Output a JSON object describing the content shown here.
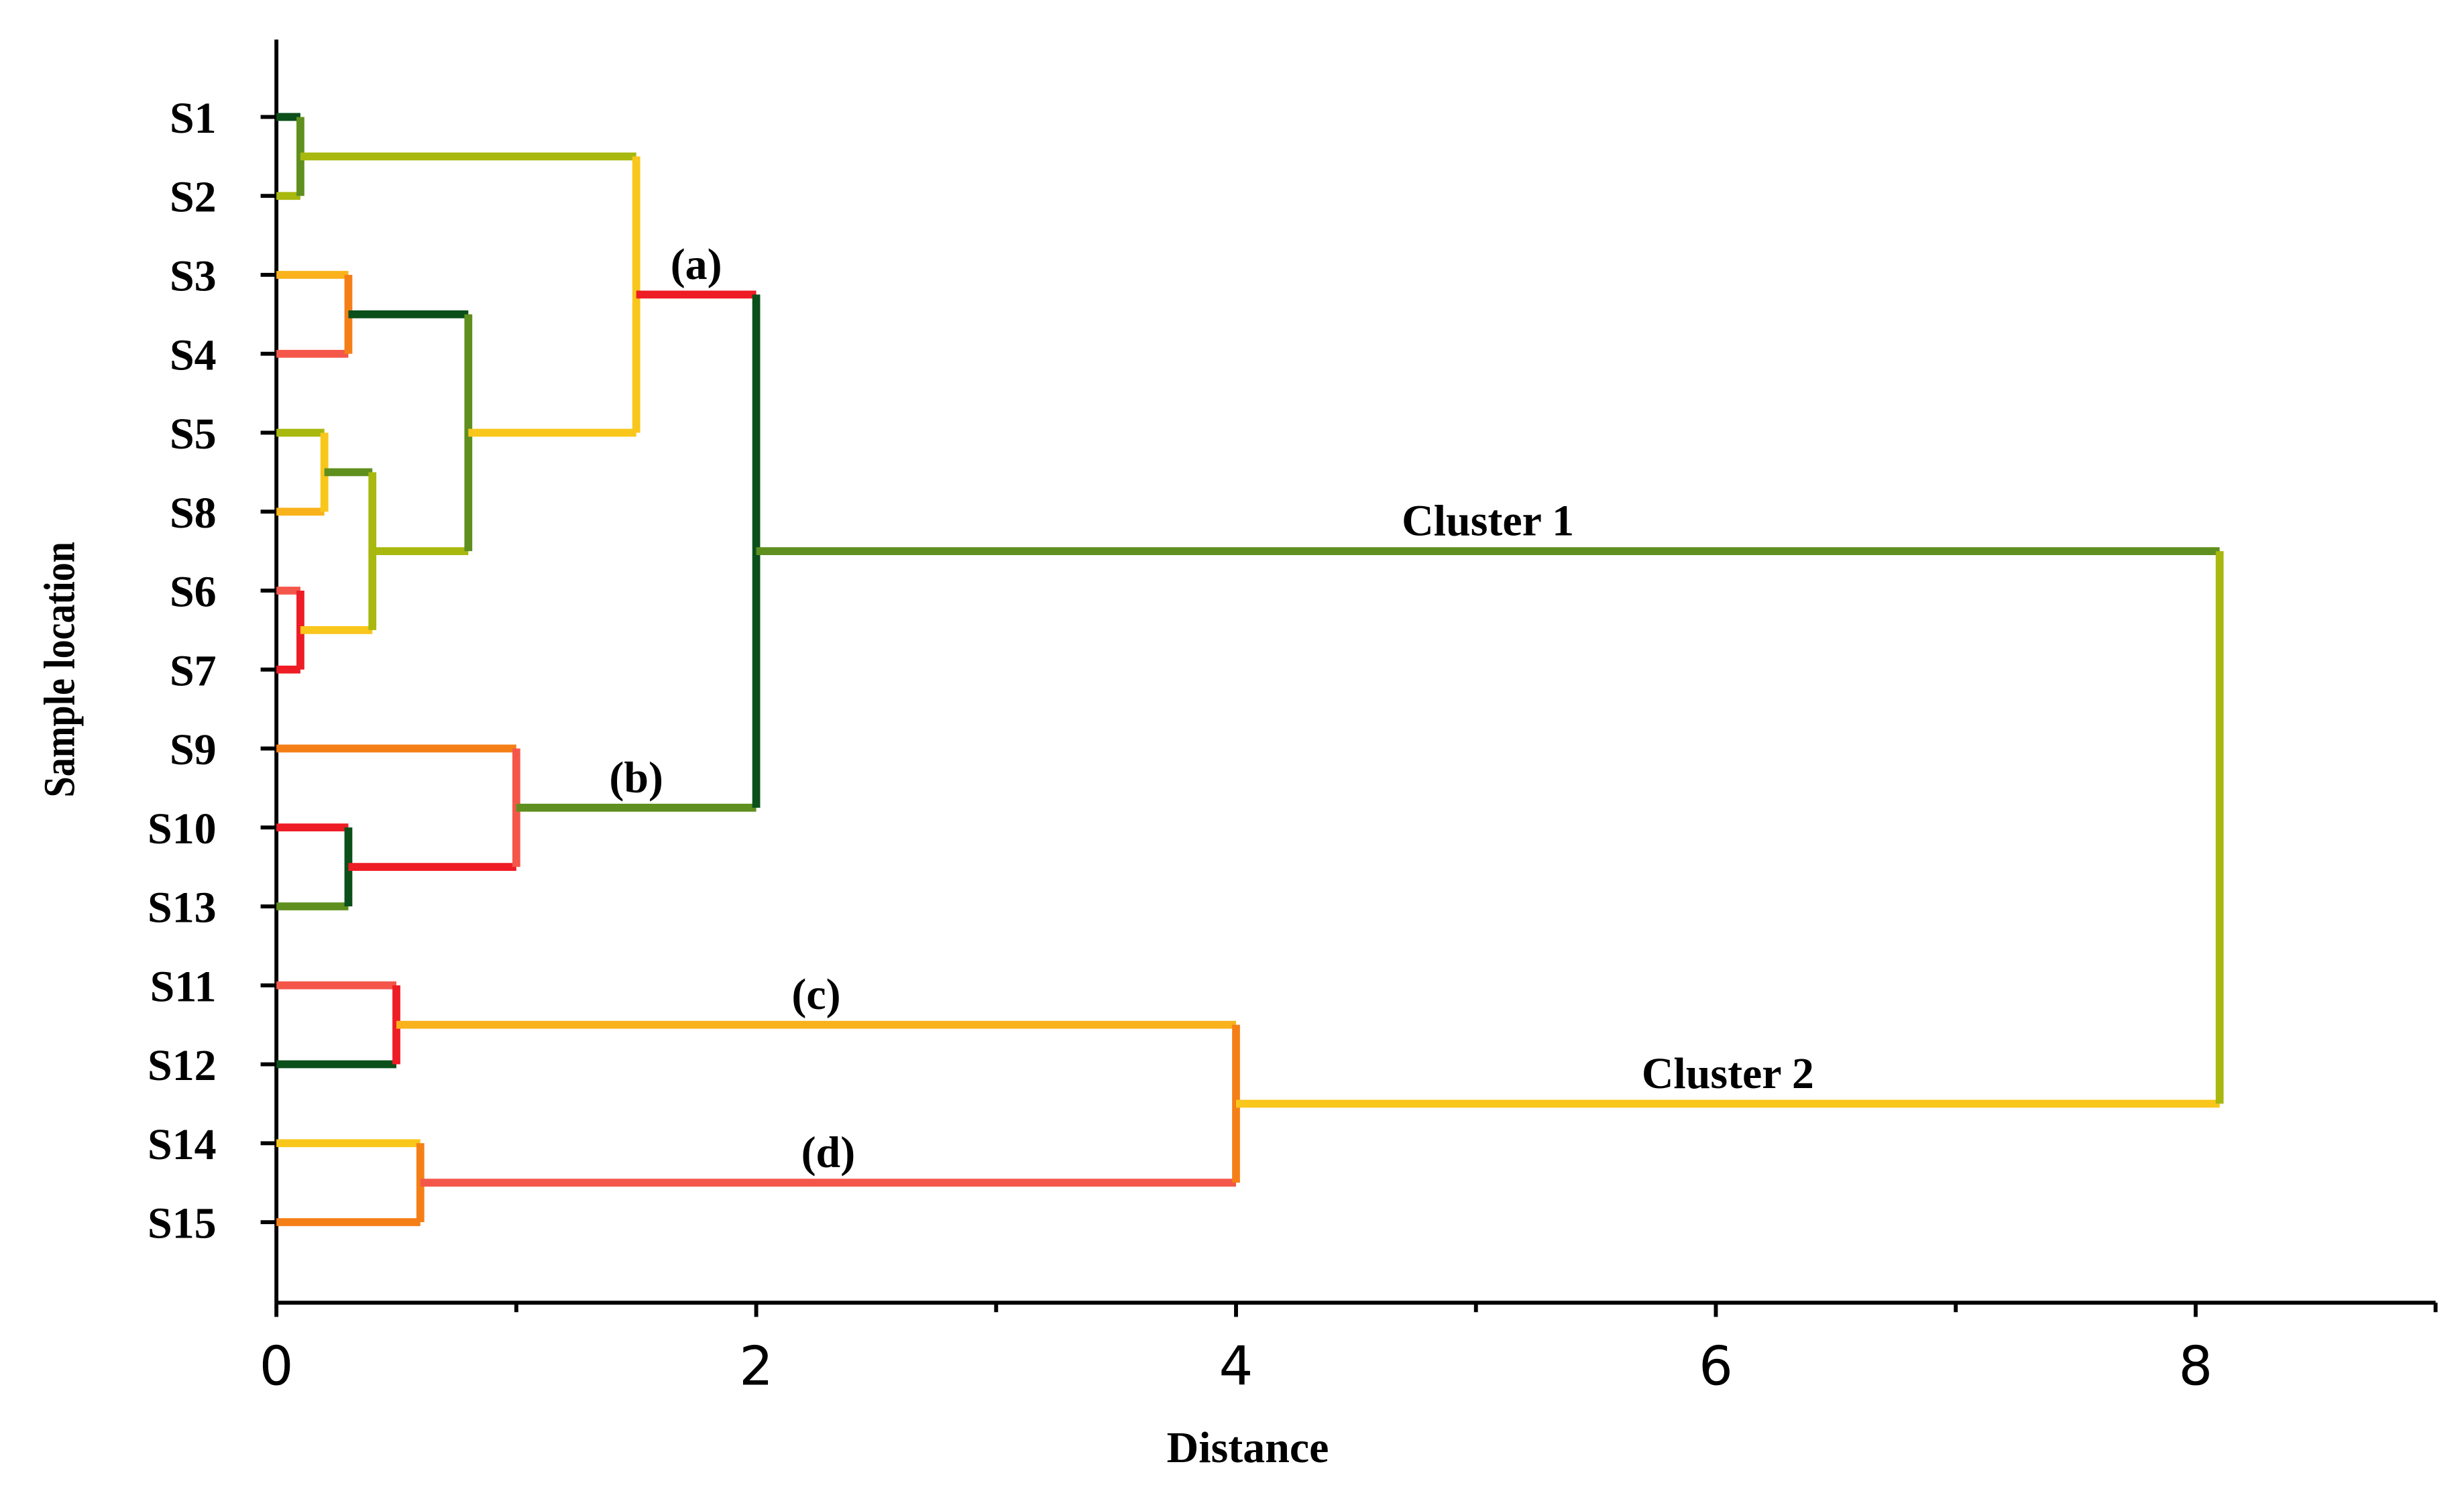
{
  "chart_data": {
    "type": "dendrogram",
    "xlabel": "Distance",
    "ylabel": "Sample location",
    "leaves": [
      "S1",
      "S2",
      "S3",
      "S4",
      "S5",
      "S8",
      "S6",
      "S7",
      "S9",
      "S10",
      "S13",
      "S11",
      "S12",
      "S14",
      "S15"
    ],
    "merges": [
      {
        "left": 0,
        "right": 1,
        "height": 0.1,
        "colors": [
          "#0b4f1a",
          "#5f8f1e",
          "#a8b80f"
        ]
      },
      {
        "left": 2,
        "right": 3,
        "height": 0.3,
        "colors": [
          "#f9b21b",
          "#f57f17",
          "#f4574a"
        ]
      },
      {
        "left": 4,
        "right": 5,
        "height": 0.2,
        "colors": [
          "#a8b80f",
          "#f9c61b",
          "#f9b21b"
        ]
      },
      {
        "left": 6,
        "right": 7,
        "height": 0.1,
        "colors": [
          "#f4574a",
          "#ee1c25",
          "#ee1c25"
        ]
      },
      {
        "left": 17,
        "right": 18,
        "height": 0.4,
        "colors": [
          "#5f8f1e",
          "#a8b80f",
          "#f9c61b"
        ]
      },
      {
        "left": 16,
        "right": 19,
        "height": 0.8,
        "colors": [
          "#0b4f1a",
          "#5f8f1e",
          "#a8b80f"
        ]
      },
      {
        "left": 15,
        "right": 20,
        "height": 1.5,
        "colors": [
          "#a8b80f",
          "#f9c61b",
          "#f9c61b"
        ]
      },
      {
        "left": 9,
        "right": 10,
        "height": 0.3,
        "colors": [
          "#ee1c25",
          "#0b4f1a",
          "#5f8f1e"
        ]
      },
      {
        "left": 8,
        "right": 22,
        "height": 1.0,
        "colors": [
          "#f57f17",
          "#f4574a",
          "#ee1c25"
        ]
      },
      {
        "left": 21,
        "right": 23,
        "height": 2.0,
        "colors": [
          "#ee1c25",
          "#0b4f1a",
          "#5f8f1e"
        ],
        "labels": [
          "(a)",
          "(b)"
        ]
      },
      {
        "left": 11,
        "right": 12,
        "height": 0.5,
        "colors": [
          "#f4574a",
          "#ee1c25",
          "#0b4f1a"
        ]
      },
      {
        "left": 13,
        "right": 14,
        "height": 0.6,
        "colors": [
          "#f9c61b",
          "#f57f17",
          "#f57f17"
        ]
      },
      {
        "left": 25,
        "right": 26,
        "height": 4.0,
        "colors": [
          "#f9b21b",
          "#f57f17",
          "#f4574a"
        ],
        "labels": [
          "(c)",
          "(d)"
        ]
      },
      {
        "left": 24,
        "right": 27,
        "height": 8.1,
        "colors": [
          "#5f8f1e",
          "#a8b80f",
          "#f9c61b"
        ],
        "labels": [
          "Cluster 1",
          "Cluster 2"
        ]
      }
    ],
    "xlim": [
      0,
      9
    ],
    "xticks": [
      0,
      2,
      4,
      6,
      8
    ],
    "xminorticks": [
      1,
      3,
      5,
      7,
      9
    ]
  }
}
